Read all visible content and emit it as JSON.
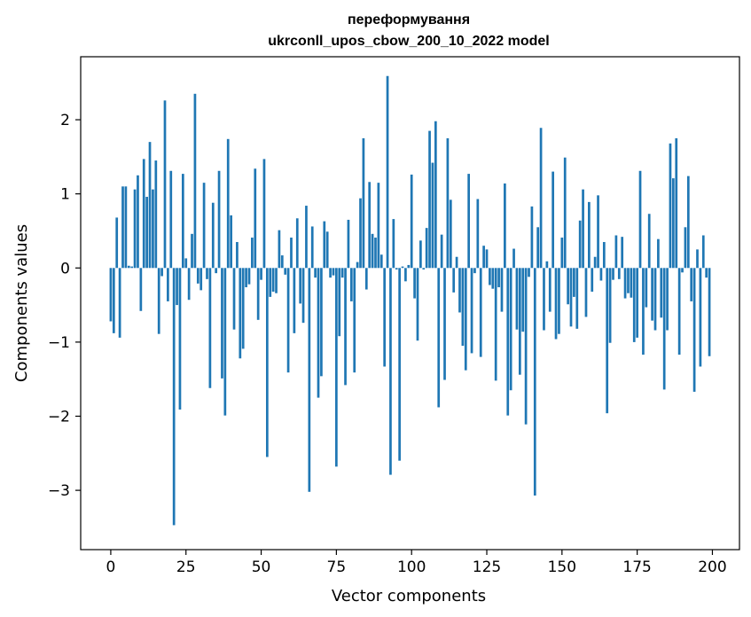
{
  "chart_data": {
    "type": "bar",
    "title": "переформування",
    "subtitle": "ukrconll_upos_cbow_200_10_2022 model",
    "xlabel": "Vector components",
    "ylabel": "Components values",
    "xlim": [
      -10,
      209
    ],
    "ylim": [
      -3.8,
      2.85
    ],
    "xticks": [
      0,
      25,
      50,
      75,
      100,
      125,
      150,
      175,
      200
    ],
    "yticks": [
      -3,
      -2,
      -1,
      0,
      1,
      2
    ],
    "bar_color": "#1f77b4",
    "series": [
      {
        "name": "переформування",
        "values": [
          -0.72,
          -0.88,
          0.68,
          -0.94,
          1.1,
          1.1,
          0.03,
          0.02,
          1.06,
          1.25,
          -0.58,
          1.47,
          0.96,
          1.7,
          1.06,
          1.45,
          -0.89,
          -0.11,
          2.26,
          -0.45,
          1.31,
          -3.47,
          -0.5,
          -1.91,
          1.27,
          0.13,
          -0.43,
          0.46,
          2.35,
          -0.21,
          -0.3,
          1.15,
          -0.15,
          -1.62,
          0.88,
          -0.07,
          1.31,
          -1.49,
          -1.99,
          1.74,
          0.71,
          -0.83,
          0.35,
          -1.22,
          -1.09,
          -0.26,
          -0.22,
          0.41,
          1.34,
          -0.7,
          -0.16,
          1.47,
          -2.55,
          -0.39,
          -0.32,
          -0.34,
          0.51,
          0.17,
          -0.09,
          -1.41,
          0.41,
          -0.88,
          0.67,
          -0.48,
          -0.74,
          0.84,
          -3.02,
          0.56,
          -0.13,
          -1.75,
          -1.46,
          0.63,
          0.49,
          -0.13,
          -0.1,
          -2.68,
          -0.92,
          -0.13,
          -1.58,
          0.65,
          -0.45,
          -1.41,
          0.08,
          0.94,
          1.75,
          -0.29,
          1.16,
          0.46,
          0.41,
          1.15,
          0.18,
          -1.33,
          2.59,
          -2.79,
          0.66,
          -0.02,
          -2.6,
          0.02,
          -0.18,
          0.04,
          1.26,
          -0.41,
          -0.98,
          0.37,
          -0.02,
          0.54,
          1.85,
          1.42,
          1.98,
          -1.88,
          0.45,
          -1.51,
          1.75,
          0.92,
          -0.33,
          0.15,
          -0.6,
          -1.05,
          -1.38,
          1.27,
          -1.15,
          -0.07,
          0.93,
          -1.2,
          0.3,
          0.25,
          -0.23,
          -0.28,
          -1.52,
          -0.26,
          -0.59,
          1.14,
          -1.99,
          -1.65,
          0.26,
          -0.83,
          -1.44,
          -0.86,
          -2.11,
          -0.12,
          0.83,
          -3.07,
          0.55,
          1.89,
          -0.84,
          0.09,
          -0.59,
          1.3,
          -0.96,
          -0.89,
          0.41,
          1.49,
          -0.49,
          -0.79,
          -0.39,
          -0.82,
          0.64,
          1.06,
          -0.66,
          0.89,
          -0.32,
          0.15,
          0.98,
          -0.17,
          0.35,
          -1.96,
          -1.01,
          -0.16,
          0.44,
          -0.15,
          0.42,
          -0.41,
          -0.34,
          -0.4,
          -1.0,
          -0.94,
          1.31,
          -1.17,
          -0.53,
          0.73,
          -0.71,
          -0.84,
          0.39,
          -0.67,
          -1.64,
          -0.84,
          1.68,
          1.21,
          1.75,
          -1.17,
          -0.06,
          0.55,
          1.24,
          -0.45,
          -1.67,
          0.25,
          -1.33,
          0.44,
          -0.13,
          -1.19
        ]
      }
    ]
  }
}
